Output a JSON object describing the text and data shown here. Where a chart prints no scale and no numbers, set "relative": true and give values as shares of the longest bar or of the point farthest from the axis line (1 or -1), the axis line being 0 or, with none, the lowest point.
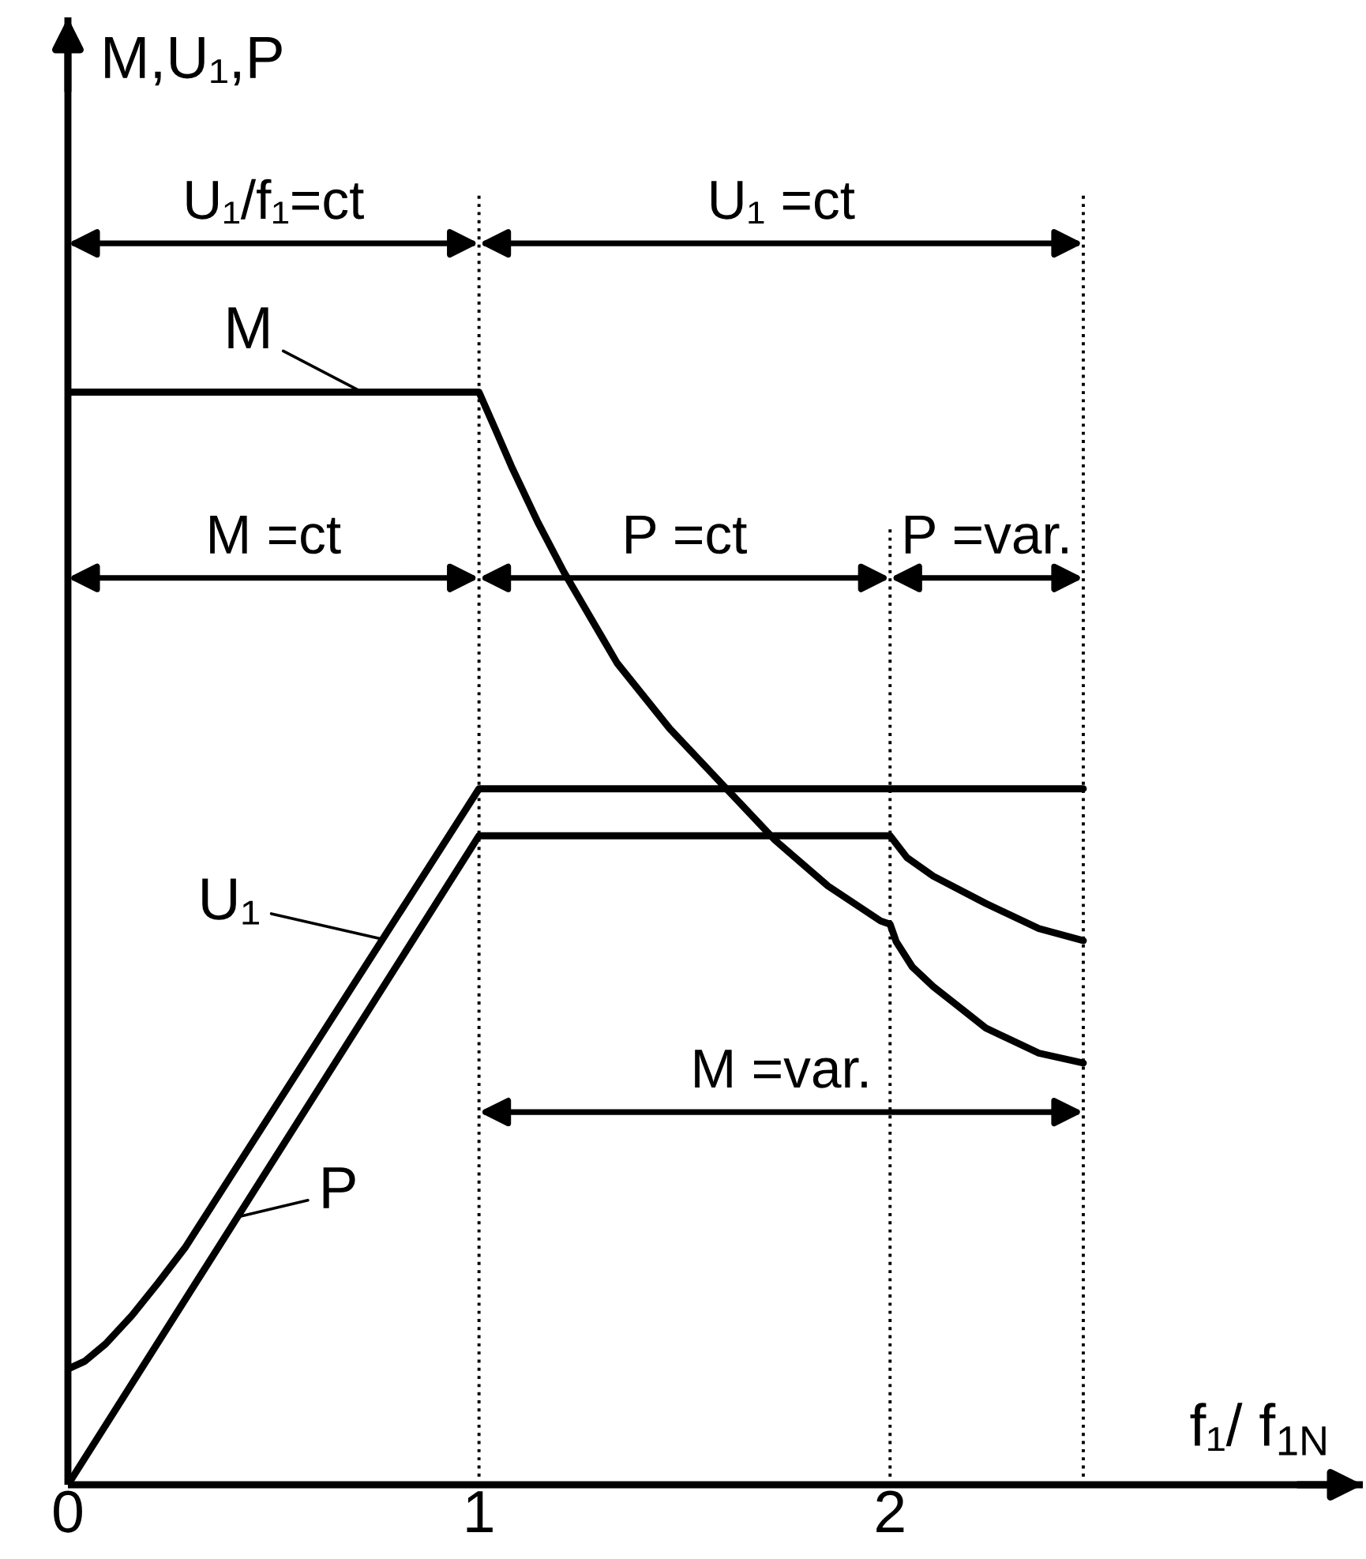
{
  "chart_data": {
    "type": "line",
    "relative": true,
    "xlabel": "f₁/ f$_{1N}$",
    "xlim": [
      0,
      3.15
    ],
    "xticks": [
      0,
      1,
      2
    ],
    "series": [
      {
        "name": "M",
        "color": "#000000",
        "x": [
          0,
          1,
          1.041,
          1.079,
          1.143,
          1.207,
          1.336,
          1.464,
          1.592,
          1.72,
          1.849,
          1.977,
          2.0,
          2.015,
          2.054,
          2.105,
          2.233,
          2.362,
          2.47
        ],
        "values": [
          1,
          1,
          0.965,
          0.932,
          0.881,
          0.835,
          0.752,
          0.692,
          0.641,
          0.59,
          0.548,
          0.516,
          0.513,
          0.497,
          0.474,
          0.456,
          0.418,
          0.395,
          0.386
        ]
      },
      {
        "name": "U₁",
        "color": "#000000",
        "x": [
          0,
          0.041,
          0.092,
          0.156,
          0.22,
          0.285,
          1,
          2.47
        ],
        "values": [
          0.106,
          0.113,
          0.129,
          0.155,
          0.185,
          0.217,
          0.637,
          0.637
        ]
      },
      {
        "name": "P",
        "color": "#000000",
        "x": [
          0,
          1,
          2,
          2.041,
          2.105,
          2.233,
          2.362,
          2.47
        ],
        "values": [
          0,
          0.594,
          0.594,
          0.574,
          0.557,
          0.532,
          0.509,
          0.498
        ]
      }
    ],
    "ref_lines": [
      {
        "axis": "x",
        "value": 1,
        "color": "#000000",
        "line_style": "dotted"
      },
      {
        "axis": "x",
        "value": 2,
        "color": "#000000",
        "line_style": "dotted"
      },
      {
        "axis": "x",
        "value": 2.47,
        "color": "#000000",
        "line_style": "dotted"
      }
    ],
    "annotations": [
      "M,U₁,P",
      "U₁/f₁=ct",
      "U₁ =ct",
      "M =ct",
      "P =ct",
      "P =var.",
      "M =var."
    ]
  }
}
